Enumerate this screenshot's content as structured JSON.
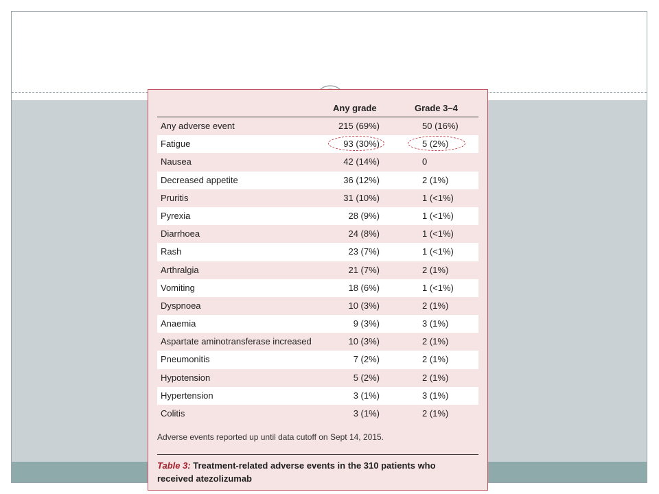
{
  "table": {
    "headers": {
      "any": "Any grade",
      "grade34": "Grade 3–4"
    },
    "rows": [
      {
        "name": "Any adverse event",
        "any": "215 (69%)",
        "grade34": "50 (16%)"
      },
      {
        "name": "Fatigue",
        "any": "93 (30%)",
        "grade34": "5 (2%)"
      },
      {
        "name": "Nausea",
        "any": "42 (14%)",
        "grade34": "0"
      },
      {
        "name": "Decreased appetite",
        "any": "36 (12%)",
        "grade34": "2 (1%)"
      },
      {
        "name": "Pruritis",
        "any": "31 (10%)",
        "grade34": "1 (<1%)"
      },
      {
        "name": "Pyrexia",
        "any": "28 (9%)",
        "grade34": "1 (<1%)"
      },
      {
        "name": "Diarrhoea",
        "any": "24 (8%)",
        "grade34": "1 (<1%)"
      },
      {
        "name": "Rash",
        "any": "23 (7%)",
        "grade34": "1 (<1%)"
      },
      {
        "name": "Arthralgia",
        "any": "21 (7%)",
        "grade34": "2 (1%)"
      },
      {
        "name": "Vomiting",
        "any": "18 (6%)",
        "grade34": "1 (<1%)"
      },
      {
        "name": "Dyspnoea",
        "any": "10 (3%)",
        "grade34": "2 (1%)"
      },
      {
        "name": "Anaemia",
        "any": "9 (3%)",
        "grade34": "3 (1%)"
      },
      {
        "name": "Aspartate aminotransferase increased",
        "any": "10 (3%)",
        "grade34": "2 (1%)"
      },
      {
        "name": "Pneumonitis",
        "any": "7 (2%)",
        "grade34": "2 (1%)"
      },
      {
        "name": "Hypotension",
        "any": "5 (2%)",
        "grade34": "2 (1%)"
      },
      {
        "name": "Hypertension",
        "any": "3 (1%)",
        "grade34": "3 (1%)"
      },
      {
        "name": "Colitis",
        "any": "3 (1%)",
        "grade34": "2 (1%)"
      }
    ]
  },
  "footnote": "Adverse events reported up until data cutoff on Sept 14, 2015.",
  "caption": {
    "label": "Table 3:",
    "text": " Treatment-related adverse events in the 310 patients who received atezolizumab"
  },
  "colors": {
    "panel_bg": "#f6e3e3",
    "panel_border": "#c0505a",
    "band_gray": "#c9d1d5",
    "band_teal": "#8eaaab",
    "highlight_circle": "#c0303a"
  }
}
